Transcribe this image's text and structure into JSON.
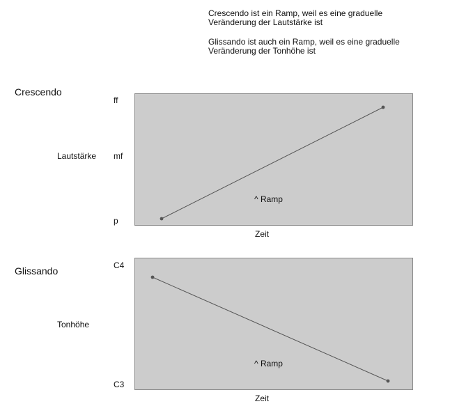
{
  "notes": [
    {
      "line1": "Crescendo ist ein Ramp, weil es eine graduelle",
      "line2": "Veränderung der Lautstärke ist"
    },
    {
      "line1": "Glissando ist auch ein Ramp, weil es eine graduelle",
      "line2": "Veränderung der Tonhöhe ist"
    }
  ],
  "diagrams": [
    {
      "title": "Crescendo",
      "ylabel": "Lautstärke",
      "yticks": [
        "ff",
        "mf",
        "p"
      ],
      "xlabel": "Zeit",
      "annotation": "^ Ramp",
      "ramp": {
        "from": "p",
        "to": "ff",
        "direction": "rising"
      }
    },
    {
      "title": "Glissando",
      "ylabel": "Tonhöhe",
      "yticks": [
        "C4",
        "C3"
      ],
      "xlabel": "Zeit",
      "annotation": "^ Ramp",
      "ramp": {
        "from": "C4",
        "to": "C3",
        "direction": "falling"
      }
    }
  ],
  "colors": {
    "panel_fill": "#cccccc",
    "panel_stroke": "#888888",
    "line": "#555555"
  }
}
